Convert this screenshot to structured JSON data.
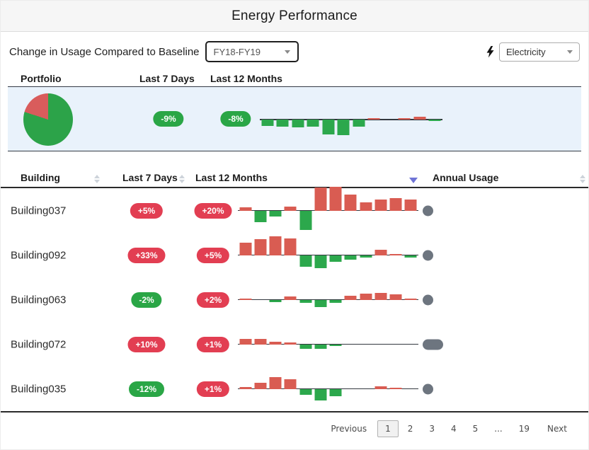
{
  "title": "Energy Performance",
  "filters": {
    "label": "Change in Usage Compared to Baseline",
    "baseline_value": "FY18-FY19",
    "utility_value": "Electricity"
  },
  "colors": {
    "positive_red": "#e23e52",
    "negative_green": "#2aa646",
    "spark_red": "#d95c52",
    "spark_green": "#2ca84c",
    "pie_green": "#2ca349",
    "pie_red": "#d95c5c",
    "usage_gray": "#6d757f",
    "sort_active_blue": "#6f74d6",
    "band_bg": "#e9f2fb"
  },
  "portfolio": {
    "label": "Portfolio",
    "col_last7": "Last 7 Days",
    "col_last12": "Last 12 Months",
    "pie": {
      "green_pct": 80,
      "red_pct": 20
    },
    "last7": {
      "text": "-9%",
      "trend": "down"
    },
    "last12": {
      "text": "-8%",
      "trend": "down"
    },
    "spark_monthly_pct": [
      -8,
      -9,
      -10,
      -9,
      -19,
      -20,
      -9,
      2,
      0,
      2,
      4,
      -2
    ]
  },
  "table": {
    "headers": [
      {
        "label": "Building",
        "sort": "none"
      },
      {
        "label": "Last 7 Days",
        "sort": "none"
      },
      {
        "label": "Last 12 Months",
        "sort": "desc"
      },
      {
        "label": "Annual Usage",
        "sort": "none"
      }
    ],
    "rows": [
      {
        "name": "Building037",
        "last7": "+5%",
        "last7_trend": "up",
        "last12": "+20%",
        "last12_trend": "up",
        "spark_monthly_pct": [
          4,
          -14,
          -7,
          5,
          -23,
          27,
          28,
          19,
          10,
          13,
          15,
          13
        ],
        "annual_usage_width": 15
      },
      {
        "name": "Building092",
        "last7": "+33%",
        "last7_trend": "up",
        "last12": "+5%",
        "last12_trend": "up",
        "spark_monthly_pct": [
          15,
          19,
          22,
          20,
          -14,
          -15,
          -8,
          -5,
          -3,
          6,
          1,
          -3
        ],
        "annual_usage_width": 15
      },
      {
        "name": "Building063",
        "last7": "-2%",
        "last7_trend": "down",
        "last12": "+2%",
        "last12_trend": "up",
        "spark_monthly_pct": [
          1,
          0,
          -3,
          4,
          -4,
          -9,
          -4,
          5,
          7,
          8,
          6,
          1
        ],
        "annual_usage_width": 15
      },
      {
        "name": "Building072",
        "last7": "+10%",
        "last7_trend": "up",
        "last12": "+1%",
        "last12_trend": "up",
        "spark_monthly_pct": [
          6,
          6,
          3,
          2,
          -5,
          -5,
          -2,
          0,
          0,
          0,
          0,
          0
        ],
        "annual_usage_width": 29
      },
      {
        "name": "Building035",
        "last7": "-12%",
        "last7_trend": "down",
        "last12": "+1%",
        "last12_trend": "up",
        "spark_monthly_pct": [
          2,
          7,
          14,
          11,
          -7,
          -14,
          -9,
          0,
          0,
          3,
          1,
          0
        ],
        "annual_usage_width": 15
      }
    ]
  },
  "pagination": {
    "previous_label": "Previous",
    "next_label": "Next",
    "pages": [
      "1",
      "2",
      "3",
      "4",
      "5",
      "...",
      "19"
    ],
    "current_page": "1"
  }
}
